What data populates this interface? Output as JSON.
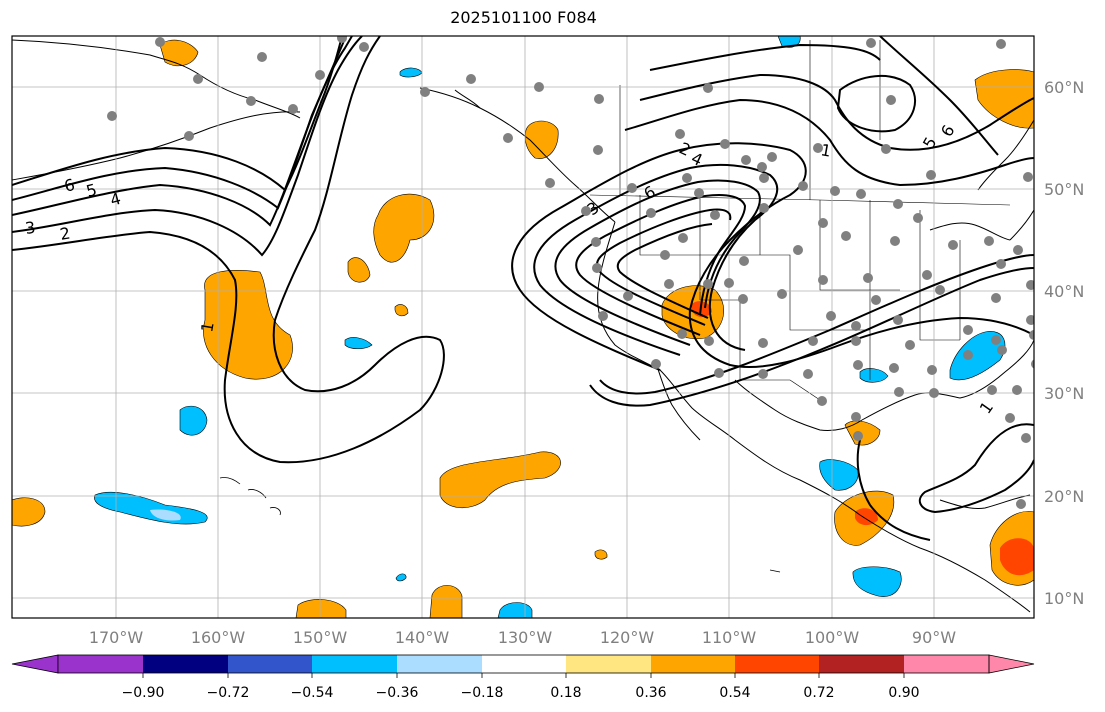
{
  "title": "2025101100 F084",
  "longitude_labels": [
    "170°W",
    "160°W",
    "150°W",
    "140°W",
    "130°W",
    "120°W",
    "110°W",
    "100°W",
    "90°W"
  ],
  "latitude_labels": [
    "60°N",
    "50°N",
    "40°N",
    "30°N",
    "20°N",
    "10°N"
  ],
  "colorbar": {
    "tick_labels": [
      "−0.90",
      "−0.72",
      "−0.54",
      "−0.36",
      "−0.18",
      "0.18",
      "0.36",
      "0.54",
      "0.72",
      "0.90"
    ],
    "colors": [
      "#9933cc",
      "#000080",
      "#3355cc",
      "#00bfff",
      "#aaddff",
      "#ffffff",
      "#ffe680",
      "#ffa500",
      "#ff4500",
      "#b22222",
      "#ff88aa"
    ]
  },
  "contour_labels": [
    "6",
    "5",
    "4",
    "3",
    "2",
    "1",
    "2",
    "4",
    "3",
    "6",
    "1",
    "5",
    "6",
    "1"
  ],
  "colors": {
    "positive_light": "#ffa500",
    "positive_strong": "#ff4500",
    "negative": "#00bfff",
    "station": "#808080",
    "grid": "#b0b0b0"
  }
}
